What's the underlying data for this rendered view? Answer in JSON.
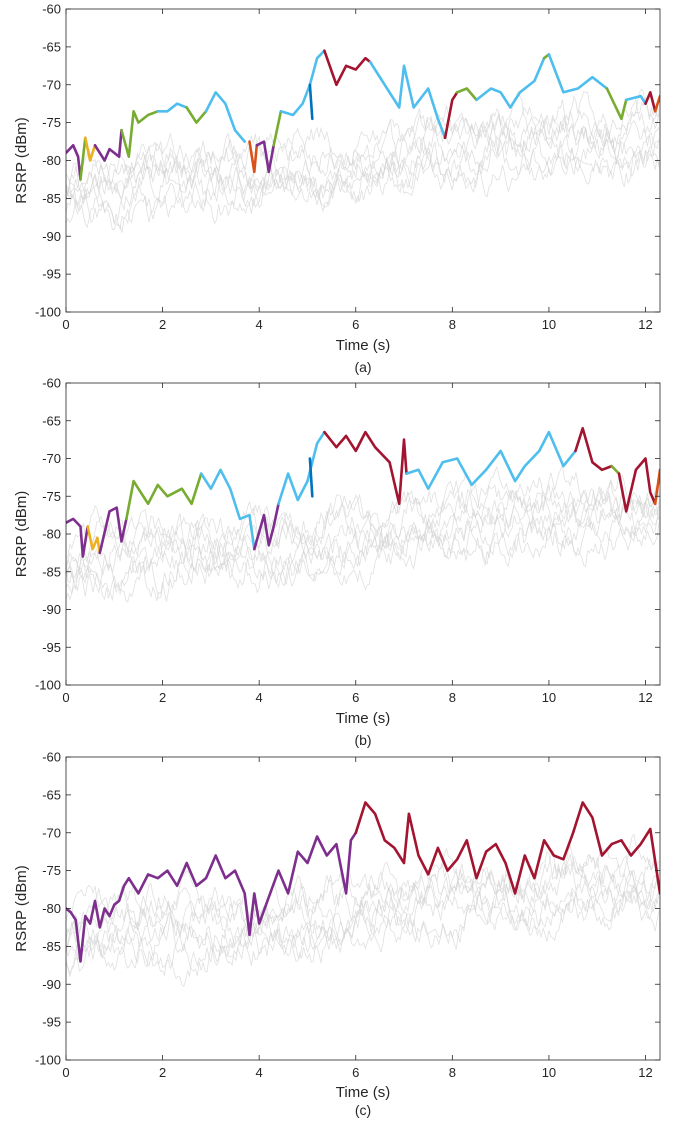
{
  "colors": {
    "background_trace": "#d3d3d3",
    "purple": "#7e2f8e",
    "yellow": "#edb120",
    "orange": "#d95319",
    "green": "#77ac30",
    "light_blue": "#4dbeee",
    "dark_blue": "#0072bd",
    "dark_red": "#a2142f",
    "axis": "#262626"
  },
  "chart_data": [
    {
      "type": "line",
      "panel_label": "(a)",
      "xlabel": "Time (s)",
      "ylabel": "RSRP (dBm)",
      "xlim": [
        0,
        12.3
      ],
      "ylim": [
        -100,
        -60
      ],
      "xticks": [
        "0",
        "2",
        "4",
        "6",
        "8",
        "10",
        "12"
      ],
      "yticks": [
        "-100",
        "-95",
        "-90",
        "-85",
        "-80",
        "-75",
        "-70",
        "-65",
        "-60"
      ],
      "grid": false,
      "legend": "none",
      "background_traces": 8,
      "segments": [
        {
          "color": "purple",
          "x": [
            0,
            0.15,
            0.25,
            0.3
          ],
          "y": [
            -79,
            -78,
            -79.5,
            -82.5
          ]
        },
        {
          "color": "green",
          "x": [
            0.3,
            0.4
          ],
          "y": [
            -82.5,
            -77
          ]
        },
        {
          "color": "yellow",
          "x": [
            0.4,
            0.5,
            0.6
          ],
          "y": [
            -77,
            -80,
            -78
          ]
        },
        {
          "color": "purple",
          "x": [
            0.6,
            0.8,
            0.9,
            1.1,
            1.15
          ],
          "y": [
            -78,
            -80,
            -78.5,
            -79.5,
            -76
          ]
        },
        {
          "color": "green",
          "x": [
            1.15,
            1.3,
            1.4,
            1.5,
            1.7,
            1.9
          ],
          "y": [
            -76,
            -79.5,
            -73.5,
            -75,
            -74,
            -73.5
          ]
        },
        {
          "color": "light_blue",
          "x": [
            1.9,
            2.1,
            2.3,
            2.5
          ],
          "y": [
            -73.5,
            -73.5,
            -72.5,
            -73
          ]
        },
        {
          "color": "green",
          "x": [
            2.5,
            2.7,
            2.9
          ],
          "y": [
            -73,
            -75,
            -73.5
          ]
        },
        {
          "color": "light_blue",
          "x": [
            2.9,
            3.1,
            3.3,
            3.5,
            3.7
          ],
          "y": [
            -73.5,
            -71,
            -72.5,
            -76,
            -77.5
          ]
        },
        {
          "color": "orange",
          "x": [
            3.8,
            3.9,
            3.95
          ],
          "y": [
            -77.5,
            -81.5,
            -78
          ]
        },
        {
          "color": "purple",
          "x": [
            3.95,
            4.1,
            4.2,
            4.3
          ],
          "y": [
            -78,
            -77.5,
            -81.5,
            -78
          ]
        },
        {
          "color": "green",
          "x": [
            4.3,
            4.45
          ],
          "y": [
            -78,
            -73.5
          ]
        },
        {
          "color": "light_blue",
          "x": [
            4.45,
            4.7,
            4.9,
            5.05,
            5.2,
            5.35
          ],
          "y": [
            -73.5,
            -74,
            -72.5,
            -70,
            -66.5,
            -65.5
          ]
        },
        {
          "color": "dark_blue",
          "x": [
            5.05,
            5.1
          ],
          "y": [
            -70,
            -74.5
          ]
        },
        {
          "color": "dark_red",
          "x": [
            5.35,
            5.6,
            5.8,
            6.0,
            6.2,
            6.3
          ],
          "y": [
            -65.5,
            -70,
            -67.5,
            -68,
            -66.5,
            -67
          ]
        },
        {
          "color": "light_blue",
          "x": [
            6.3,
            6.6,
            6.9,
            7.0,
            7.2,
            7.5,
            7.7,
            7.85
          ],
          "y": [
            -67,
            -70,
            -73,
            -67.5,
            -73,
            -70.5,
            -74.5,
            -77
          ]
        },
        {
          "color": "dark_red",
          "x": [
            7.85,
            8.0,
            8.1
          ],
          "y": [
            -77,
            -72,
            -71
          ]
        },
        {
          "color": "green",
          "x": [
            8.1,
            8.3,
            8.5
          ],
          "y": [
            -71,
            -70.5,
            -72
          ]
        },
        {
          "color": "light_blue",
          "x": [
            8.5,
            8.8,
            9.0,
            9.2,
            9.4,
            9.7,
            9.9
          ],
          "y": [
            -72,
            -70.5,
            -71,
            -73,
            -71,
            -69.5,
            -66.5
          ]
        },
        {
          "color": "green",
          "x": [
            9.9,
            10.0
          ],
          "y": [
            -66.5,
            -66
          ]
        },
        {
          "color": "light_blue",
          "x": [
            10.0,
            10.3,
            10.6,
            10.9,
            11.2
          ],
          "y": [
            -66,
            -71,
            -70.5,
            -69,
            -70.5
          ]
        },
        {
          "color": "green",
          "x": [
            11.2,
            11.5,
            11.6
          ],
          "y": [
            -70.5,
            -74.5,
            -72
          ]
        },
        {
          "color": "light_blue",
          "x": [
            11.6,
            11.9,
            12.0
          ],
          "y": [
            -72,
            -71.5,
            -72.5
          ]
        },
        {
          "color": "dark_red",
          "x": [
            12.0,
            12.1,
            12.2
          ],
          "y": [
            -72.5,
            -71,
            -73.5
          ]
        },
        {
          "color": "orange",
          "x": [
            12.2,
            12.3
          ],
          "y": [
            -73.5,
            -71.5
          ]
        }
      ]
    },
    {
      "type": "line",
      "panel_label": "(b)",
      "xlabel": "Time (s)",
      "ylabel": "RSRP (dBm)",
      "xlim": [
        0,
        12.3
      ],
      "ylim": [
        -100,
        -60
      ],
      "xticks": [
        "0",
        "2",
        "4",
        "6",
        "8",
        "10",
        "12"
      ],
      "yticks": [
        "-100",
        "-95",
        "-90",
        "-85",
        "-80",
        "-75",
        "-70",
        "-65",
        "-60"
      ],
      "grid": false,
      "legend": "none",
      "background_traces": 8,
      "segments": [
        {
          "color": "purple",
          "x": [
            0,
            0.15,
            0.3,
            0.35,
            0.45
          ],
          "y": [
            -78.5,
            -78,
            -79,
            -83,
            -79
          ]
        },
        {
          "color": "yellow",
          "x": [
            0.45,
            0.55,
            0.65,
            0.7
          ],
          "y": [
            -79,
            -82,
            -80.5,
            -82.5
          ]
        },
        {
          "color": "purple",
          "x": [
            0.7,
            0.9,
            1.05,
            1.15,
            1.25
          ],
          "y": [
            -82.5,
            -77,
            -76.5,
            -81,
            -78
          ]
        },
        {
          "color": "green",
          "x": [
            1.25,
            1.4,
            1.5,
            1.7,
            1.9,
            2.1,
            2.4,
            2.6,
            2.8
          ],
          "y": [
            -78,
            -73,
            -74,
            -76,
            -73.5,
            -75,
            -74,
            -76,
            -72
          ]
        },
        {
          "color": "light_blue",
          "x": [
            2.8,
            3.0,
            3.2,
            3.4,
            3.6,
            3.8,
            3.9
          ],
          "y": [
            -72,
            -74,
            -71.5,
            -74,
            -78,
            -77.5,
            -82
          ]
        },
        {
          "color": "purple",
          "x": [
            3.9,
            4.1,
            4.2,
            4.3,
            4.4
          ],
          "y": [
            -82,
            -77.5,
            -81.5,
            -79,
            -76
          ]
        },
        {
          "color": "light_blue",
          "x": [
            4.4,
            4.6,
            4.8,
            5.0,
            5.2,
            5.35
          ],
          "y": [
            -76,
            -72,
            -75.5,
            -73,
            -68,
            -66.5
          ]
        },
        {
          "color": "dark_blue",
          "x": [
            5.05,
            5.1
          ],
          "y": [
            -70,
            -75
          ]
        },
        {
          "color": "dark_red",
          "x": [
            5.35,
            5.6,
            5.8,
            6.0,
            6.2,
            6.4,
            6.7,
            6.9,
            7.0,
            7.05
          ],
          "y": [
            -66.5,
            -68.5,
            -67,
            -69,
            -66.5,
            -68.5,
            -70.5,
            -76,
            -67.5,
            -72
          ]
        },
        {
          "color": "light_blue",
          "x": [
            7.05,
            7.3,
            7.5,
            7.8,
            8.1,
            8.4,
            8.7,
            9.0,
            9.3,
            9.5,
            9.8,
            10.0,
            10.3,
            10.55
          ],
          "y": [
            -72,
            -71.5,
            -74,
            -70.5,
            -70,
            -73.5,
            -71.5,
            -69,
            -73,
            -71,
            -69,
            -66.5,
            -71,
            -69
          ]
        },
        {
          "color": "dark_red",
          "x": [
            10.55,
            10.7,
            10.9,
            11.1,
            11.3
          ],
          "y": [
            -69,
            -66,
            -70.5,
            -71.5,
            -71
          ]
        },
        {
          "color": "green",
          "x": [
            11.3,
            11.45
          ],
          "y": [
            -71,
            -72
          ]
        },
        {
          "color": "dark_red",
          "x": [
            11.45,
            11.6,
            11.8,
            12.0,
            12.1,
            12.2
          ],
          "y": [
            -72,
            -77,
            -71.5,
            -70,
            -74.5,
            -76
          ]
        },
        {
          "color": "orange",
          "x": [
            12.2,
            12.3
          ],
          "y": [
            -76,
            -71.5
          ]
        }
      ]
    },
    {
      "type": "line",
      "panel_label": "(c)",
      "xlabel": "Time (s)",
      "ylabel": "RSRP (dBm)",
      "xlim": [
        0,
        12.3
      ],
      "ylim": [
        -100,
        -60
      ],
      "xticks": [
        "0",
        "2",
        "4",
        "6",
        "8",
        "10",
        "12"
      ],
      "yticks": [
        "-100",
        "-95",
        "-90",
        "-85",
        "-80",
        "-75",
        "-70",
        "-65",
        "-60"
      ],
      "grid": false,
      "legend": "none",
      "background_traces": 8,
      "segments": [
        {
          "color": "purple",
          "x": [
            0,
            0.1,
            0.2,
            0.3,
            0.4,
            0.5,
            0.6,
            0.7,
            0.8,
            0.9,
            1.0,
            1.1,
            1.2,
            1.3,
            1.5,
            1.7,
            1.9,
            2.1,
            2.3,
            2.5,
            2.7,
            2.9,
            3.1,
            3.3,
            3.5,
            3.7,
            3.8,
            3.9,
            4.0,
            4.2,
            4.4,
            4.6,
            4.8,
            5.0,
            5.2,
            5.4,
            5.6,
            5.8,
            5.9,
            6.0
          ],
          "y": [
            -80,
            -80.5,
            -81.5,
            -87,
            -81,
            -82,
            -79,
            -82.5,
            -80,
            -81,
            -79.5,
            -79,
            -77,
            -76,
            -78,
            -75.5,
            -76,
            -75,
            -77,
            -74,
            -77,
            -76,
            -73,
            -76,
            -75,
            -78,
            -83.5,
            -78,
            -82,
            -78.5,
            -75,
            -78,
            -72.5,
            -74,
            -70.5,
            -73,
            -71.5,
            -78,
            -71,
            -70
          ]
        },
        {
          "color": "dark_red",
          "x": [
            6.0,
            6.2,
            6.4,
            6.6,
            6.8,
            7.0,
            7.1,
            7.3,
            7.5,
            7.7,
            7.9,
            8.1,
            8.3,
            8.5,
            8.7,
            8.9,
            9.1,
            9.3,
            9.5,
            9.7,
            9.9,
            10.1,
            10.3,
            10.5,
            10.7,
            10.9,
            11.1,
            11.3,
            11.5,
            11.7,
            11.9,
            12.1,
            12.3
          ],
          "y": [
            -70,
            -66,
            -67.5,
            -71,
            -72,
            -74,
            -67.5,
            -73,
            -75.5,
            -72,
            -75,
            -73.5,
            -71,
            -76,
            -72.5,
            -71.5,
            -74,
            -78,
            -73,
            -76,
            -71,
            -73,
            -73.5,
            -70,
            -66,
            -68,
            -73,
            -71.5,
            -71,
            -73,
            -71.5,
            -69.5,
            -78
          ]
        }
      ]
    }
  ]
}
